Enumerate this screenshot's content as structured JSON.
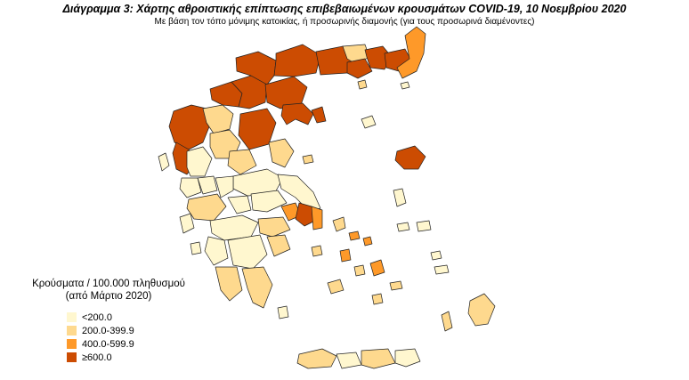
{
  "header": {
    "title": "Διάγραμμα 3: Χάρτης αθροιστικής επίπτωσης επιβεβαιωμένων κρουσμάτων COVID-19, 10 Νοεμβρίου 2020",
    "subtitle": "Με βάση τον τόπο μόνιμης κατοικίας, ή προσωρινής διαμονής (για τους προσωρινά διαμένοντες)"
  },
  "legend": {
    "title_line1": "Κρούσματα / 100.000 πληθυσμού",
    "title_line2": "(από Μάρτιο 2020)",
    "items": [
      {
        "label": "<200.0",
        "color": "#fff7cf"
      },
      {
        "label": "200.0-399.9",
        "color": "#fed98e"
      },
      {
        "label": "400.0-599.9",
        "color": "#fe9929"
      },
      {
        "label": "≥600.0",
        "color": "#cc4c02"
      }
    ]
  },
  "map_colors": {
    "low": "#fff7cf",
    "mid_low": "#fed98e",
    "mid_high": "#fe9929",
    "high": "#cc4c02",
    "border": "#222222"
  }
}
